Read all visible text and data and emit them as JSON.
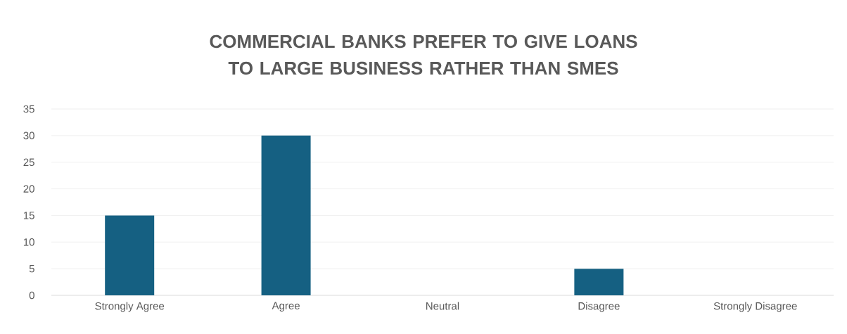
{
  "chart_data": {
    "type": "bar",
    "title": "COMMERCIAL BANKS PREFER TO GIVE LOANS TO LARGE BUSINESS RATHER THAN SMES",
    "categories": [
      "Strongly Agree",
      "Agree",
      "Neutral",
      "Disagree",
      "Strongly Disagree"
    ],
    "values": [
      15,
      30,
      0,
      5,
      0
    ],
    "color": "#156082",
    "ylim": [
      0,
      35
    ],
    "yticks": [
      0,
      5,
      10,
      15,
      20,
      25,
      30,
      35
    ],
    "grid": "y"
  }
}
